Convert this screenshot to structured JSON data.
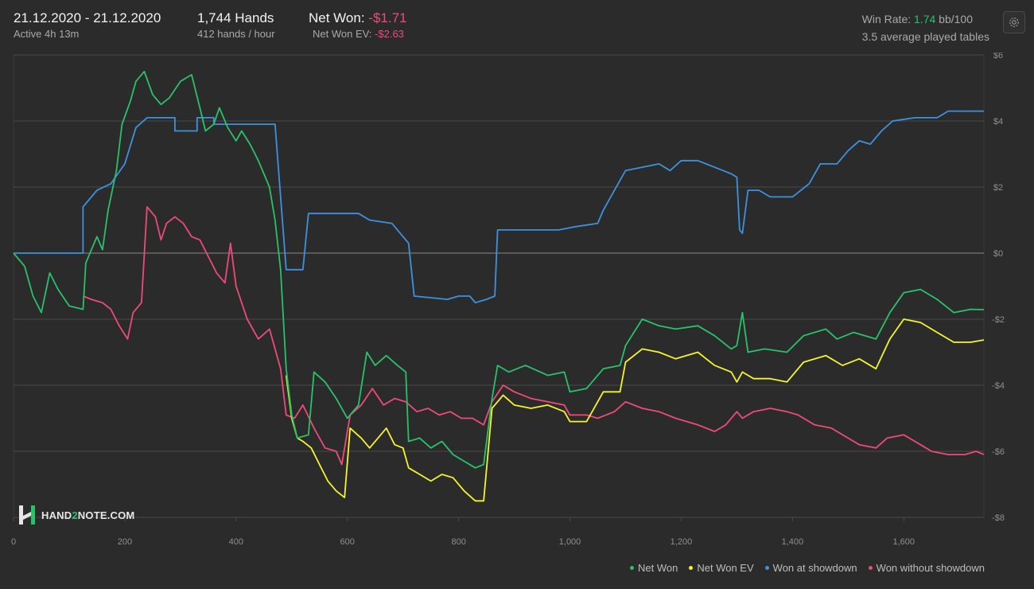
{
  "header": {
    "date_range": "21.12.2020 - 21.12.2020",
    "active": "Active 4h 13m",
    "hands": "1,744 Hands",
    "hands_per_hour": "412 hands / hour",
    "net_won_label": "Net Won: ",
    "net_won_value": "-$1.71",
    "net_won_ev_label": "Net Won  EV: ",
    "net_won_ev_value": "-$2.63",
    "win_rate_label": "Win Rate: ",
    "win_rate_value": "1.74",
    "win_rate_unit": " bb/100",
    "avg_tables": "3.5 average played tables"
  },
  "logo": {
    "prefix": "HAND",
    "two": "2",
    "suffix": "NOTE.COM"
  },
  "icons": {
    "settings": "gear-icon",
    "logo": "hand2note-logo-icon"
  },
  "colors": {
    "background": "#2b2b2b",
    "net_won": "#29c26a",
    "net_won_ev": "#f5f52d",
    "showdown": "#3d92e0",
    "non_showdown": "#ee4b78"
  },
  "chart_data": {
    "type": "line",
    "xlim": [
      0,
      1744
    ],
    "ylim": [
      -8,
      6
    ],
    "x_ticks": [
      0,
      200,
      400,
      600,
      800,
      1000,
      1200,
      1400,
      1600
    ],
    "x_tick_labels": [
      "0",
      "200",
      "400",
      "600",
      "800",
      "1,000",
      "1,200",
      "1,400",
      "1,600"
    ],
    "y_ticks": [
      6,
      4,
      2,
      0,
      -2,
      -4,
      -6,
      -8
    ],
    "y_tick_labels": [
      "$6",
      "$4",
      "$2",
      "$0",
      "-$2",
      "-$4",
      "-$6",
      "-$8"
    ],
    "grid": true,
    "legend_position": "bottom-right",
    "series": [
      {
        "name": "Net Won",
        "color": "#29c26a",
        "points": [
          [
            0,
            0
          ],
          [
            20,
            -0.4
          ],
          [
            35,
            -1.3
          ],
          [
            50,
            -1.8
          ],
          [
            65,
            -0.6
          ],
          [
            80,
            -1.1
          ],
          [
            100,
            -1.6
          ],
          [
            125,
            -1.7
          ],
          [
            130,
            -0.3
          ],
          [
            150,
            0.5
          ],
          [
            160,
            0.1
          ],
          [
            170,
            1.3
          ],
          [
            185,
            2.5
          ],
          [
            195,
            3.9
          ],
          [
            210,
            4.6
          ],
          [
            220,
            5.2
          ],
          [
            235,
            5.5
          ],
          [
            250,
            4.8
          ],
          [
            265,
            4.5
          ],
          [
            280,
            4.7
          ],
          [
            300,
            5.2
          ],
          [
            320,
            5.4
          ],
          [
            335,
            4.4
          ],
          [
            345,
            3.7
          ],
          [
            360,
            3.9
          ],
          [
            370,
            4.4
          ],
          [
            385,
            3.8
          ],
          [
            400,
            3.4
          ],
          [
            410,
            3.7
          ],
          [
            425,
            3.3
          ],
          [
            440,
            2.8
          ],
          [
            460,
            2.0
          ],
          [
            470,
            1.0
          ],
          [
            480,
            -0.5
          ],
          [
            490,
            -3.5
          ],
          [
            500,
            -4.9
          ],
          [
            510,
            -5.6
          ],
          [
            530,
            -5.5
          ],
          [
            540,
            -3.6
          ],
          [
            560,
            -3.9
          ],
          [
            580,
            -4.4
          ],
          [
            600,
            -5.0
          ],
          [
            610,
            -4.8
          ],
          [
            620,
            -4.6
          ],
          [
            635,
            -3.0
          ],
          [
            650,
            -3.4
          ],
          [
            670,
            -3.1
          ],
          [
            690,
            -3.4
          ],
          [
            705,
            -3.6
          ],
          [
            710,
            -5.7
          ],
          [
            730,
            -5.6
          ],
          [
            750,
            -5.9
          ],
          [
            770,
            -5.7
          ],
          [
            790,
            -6.1
          ],
          [
            810,
            -6.3
          ],
          [
            830,
            -6.5
          ],
          [
            845,
            -6.4
          ],
          [
            860,
            -4.4
          ],
          [
            870,
            -3.4
          ],
          [
            890,
            -3.6
          ],
          [
            920,
            -3.4
          ],
          [
            960,
            -3.7
          ],
          [
            990,
            -3.6
          ],
          [
            1000,
            -4.2
          ],
          [
            1030,
            -4.1
          ],
          [
            1060,
            -3.5
          ],
          [
            1090,
            -3.4
          ],
          [
            1100,
            -2.8
          ],
          [
            1130,
            -2.0
          ],
          [
            1160,
            -2.2
          ],
          [
            1190,
            -2.3
          ],
          [
            1230,
            -2.2
          ],
          [
            1260,
            -2.5
          ],
          [
            1290,
            -2.9
          ],
          [
            1300,
            -2.8
          ],
          [
            1310,
            -1.8
          ],
          [
            1320,
            -3.0
          ],
          [
            1350,
            -2.9
          ],
          [
            1390,
            -3.0
          ],
          [
            1420,
            -2.5
          ],
          [
            1460,
            -2.3
          ],
          [
            1480,
            -2.6
          ],
          [
            1510,
            -2.4
          ],
          [
            1550,
            -2.6
          ],
          [
            1575,
            -1.8
          ],
          [
            1600,
            -1.2
          ],
          [
            1630,
            -1.1
          ],
          [
            1660,
            -1.4
          ],
          [
            1690,
            -1.8
          ],
          [
            1720,
            -1.7
          ],
          [
            1744,
            -1.71
          ]
        ]
      },
      {
        "name": "Net Won  EV",
        "color": "#f5f52d",
        "points": [
          [
            490,
            -3.7
          ],
          [
            500,
            -5.0
          ],
          [
            510,
            -5.6
          ],
          [
            520,
            -5.7
          ],
          [
            535,
            -5.9
          ],
          [
            550,
            -6.4
          ],
          [
            565,
            -6.9
          ],
          [
            580,
            -7.2
          ],
          [
            595,
            -7.4
          ],
          [
            605,
            -5.3
          ],
          [
            625,
            -5.6
          ],
          [
            640,
            -5.9
          ],
          [
            655,
            -5.6
          ],
          [
            670,
            -5.3
          ],
          [
            685,
            -5.8
          ],
          [
            700,
            -5.9
          ],
          [
            710,
            -6.5
          ],
          [
            730,
            -6.7
          ],
          [
            750,
            -6.9
          ],
          [
            770,
            -6.7
          ],
          [
            790,
            -6.8
          ],
          [
            810,
            -7.2
          ],
          [
            830,
            -7.5
          ],
          [
            845,
            -7.5
          ],
          [
            860,
            -4.7
          ],
          [
            880,
            -4.3
          ],
          [
            900,
            -4.6
          ],
          [
            930,
            -4.7
          ],
          [
            960,
            -4.6
          ],
          [
            990,
            -4.8
          ],
          [
            1000,
            -5.1
          ],
          [
            1030,
            -5.1
          ],
          [
            1060,
            -4.2
          ],
          [
            1090,
            -4.2
          ],
          [
            1100,
            -3.3
          ],
          [
            1130,
            -2.9
          ],
          [
            1160,
            -3.0
          ],
          [
            1190,
            -3.2
          ],
          [
            1230,
            -3.0
          ],
          [
            1260,
            -3.4
          ],
          [
            1290,
            -3.6
          ],
          [
            1300,
            -3.9
          ],
          [
            1310,
            -3.6
          ],
          [
            1330,
            -3.8
          ],
          [
            1360,
            -3.8
          ],
          [
            1390,
            -3.9
          ],
          [
            1420,
            -3.3
          ],
          [
            1460,
            -3.1
          ],
          [
            1490,
            -3.4
          ],
          [
            1520,
            -3.2
          ],
          [
            1550,
            -3.5
          ],
          [
            1575,
            -2.6
          ],
          [
            1600,
            -2.0
          ],
          [
            1630,
            -2.1
          ],
          [
            1660,
            -2.4
          ],
          [
            1690,
            -2.7
          ],
          [
            1720,
            -2.7
          ],
          [
            1744,
            -2.63
          ]
        ]
      },
      {
        "name": "Won at showdown",
        "color": "#3d92e0",
        "points": [
          [
            0,
            0
          ],
          [
            125,
            0
          ],
          [
            125,
            1.4
          ],
          [
            150,
            1.9
          ],
          [
            175,
            2.1
          ],
          [
            200,
            2.7
          ],
          [
            220,
            3.8
          ],
          [
            240,
            4.1
          ],
          [
            290,
            4.1
          ],
          [
            290,
            3.7
          ],
          [
            330,
            3.7
          ],
          [
            330,
            4.1
          ],
          [
            360,
            4.1
          ],
          [
            360,
            3.9
          ],
          [
            470,
            3.9
          ],
          [
            490,
            -0.5
          ],
          [
            520,
            -0.5
          ],
          [
            530,
            1.2
          ],
          [
            620,
            1.2
          ],
          [
            640,
            1.0
          ],
          [
            680,
            0.9
          ],
          [
            700,
            0.5
          ],
          [
            710,
            0.3
          ],
          [
            720,
            -1.3
          ],
          [
            780,
            -1.4
          ],
          [
            800,
            -1.3
          ],
          [
            820,
            -1.3
          ],
          [
            830,
            -1.5
          ],
          [
            850,
            -1.4
          ],
          [
            865,
            -1.3
          ],
          [
            870,
            0.7
          ],
          [
            900,
            0.7
          ],
          [
            940,
            0.7
          ],
          [
            980,
            0.7
          ],
          [
            1010,
            0.8
          ],
          [
            1050,
            0.9
          ],
          [
            1060,
            1.3
          ],
          [
            1080,
            1.9
          ],
          [
            1100,
            2.5
          ],
          [
            1130,
            2.6
          ],
          [
            1160,
            2.7
          ],
          [
            1180,
            2.5
          ],
          [
            1200,
            2.8
          ],
          [
            1230,
            2.8
          ],
          [
            1260,
            2.6
          ],
          [
            1290,
            2.4
          ],
          [
            1300,
            2.3
          ],
          [
            1305,
            0.7
          ],
          [
            1310,
            0.6
          ],
          [
            1320,
            1.9
          ],
          [
            1340,
            1.9
          ],
          [
            1360,
            1.7
          ],
          [
            1400,
            1.7
          ],
          [
            1430,
            2.1
          ],
          [
            1450,
            2.7
          ],
          [
            1480,
            2.7
          ],
          [
            1500,
            3.1
          ],
          [
            1520,
            3.4
          ],
          [
            1540,
            3.3
          ],
          [
            1560,
            3.7
          ],
          [
            1580,
            4.0
          ],
          [
            1620,
            4.1
          ],
          [
            1660,
            4.1
          ],
          [
            1680,
            4.3
          ],
          [
            1744,
            4.3
          ]
        ]
      },
      {
        "name": "Won without showdown",
        "color": "#ee4b78",
        "points": [
          [
            125,
            -1.3
          ],
          [
            140,
            -1.4
          ],
          [
            160,
            -1.5
          ],
          [
            175,
            -1.7
          ],
          [
            190,
            -2.2
          ],
          [
            205,
            -2.6
          ],
          [
            215,
            -1.8
          ],
          [
            230,
            -1.5
          ],
          [
            240,
            1.4
          ],
          [
            255,
            1.1
          ],
          [
            265,
            0.4
          ],
          [
            275,
            0.9
          ],
          [
            290,
            1.1
          ],
          [
            305,
            0.9
          ],
          [
            320,
            0.5
          ],
          [
            335,
            0.4
          ],
          [
            350,
            -0.1
          ],
          [
            365,
            -0.6
          ],
          [
            380,
            -0.9
          ],
          [
            390,
            0.3
          ],
          [
            400,
            -1.0
          ],
          [
            420,
            -2.0
          ],
          [
            440,
            -2.6
          ],
          [
            460,
            -2.3
          ],
          [
            480,
            -3.5
          ],
          [
            490,
            -4.9
          ],
          [
            505,
            -5.0
          ],
          [
            520,
            -4.6
          ],
          [
            540,
            -5.3
          ],
          [
            560,
            -5.9
          ],
          [
            580,
            -6.0
          ],
          [
            590,
            -6.4
          ],
          [
            605,
            -4.9
          ],
          [
            625,
            -4.6
          ],
          [
            645,
            -4.1
          ],
          [
            665,
            -4.6
          ],
          [
            685,
            -4.4
          ],
          [
            705,
            -4.5
          ],
          [
            725,
            -4.8
          ],
          [
            745,
            -4.7
          ],
          [
            765,
            -4.9
          ],
          [
            785,
            -4.8
          ],
          [
            805,
            -5.0
          ],
          [
            825,
            -5.0
          ],
          [
            845,
            -5.2
          ],
          [
            860,
            -4.5
          ],
          [
            880,
            -4.0
          ],
          [
            900,
            -4.2
          ],
          [
            930,
            -4.4
          ],
          [
            960,
            -4.5
          ],
          [
            990,
            -4.6
          ],
          [
            1000,
            -4.9
          ],
          [
            1030,
            -4.9
          ],
          [
            1050,
            -5.0
          ],
          [
            1080,
            -4.8
          ],
          [
            1100,
            -4.5
          ],
          [
            1130,
            -4.7
          ],
          [
            1160,
            -4.8
          ],
          [
            1190,
            -5.0
          ],
          [
            1230,
            -5.2
          ],
          [
            1260,
            -5.4
          ],
          [
            1280,
            -5.2
          ],
          [
            1300,
            -4.8
          ],
          [
            1310,
            -5.0
          ],
          [
            1330,
            -4.8
          ],
          [
            1360,
            -4.7
          ],
          [
            1390,
            -4.8
          ],
          [
            1410,
            -4.9
          ],
          [
            1440,
            -5.2
          ],
          [
            1470,
            -5.3
          ],
          [
            1500,
            -5.6
          ],
          [
            1520,
            -5.8
          ],
          [
            1550,
            -5.9
          ],
          [
            1570,
            -5.6
          ],
          [
            1600,
            -5.5
          ],
          [
            1630,
            -5.8
          ],
          [
            1650,
            -6.0
          ],
          [
            1680,
            -6.1
          ],
          [
            1710,
            -6.1
          ],
          [
            1730,
            -6.0
          ],
          [
            1744,
            -6.1
          ]
        ]
      }
    ]
  }
}
